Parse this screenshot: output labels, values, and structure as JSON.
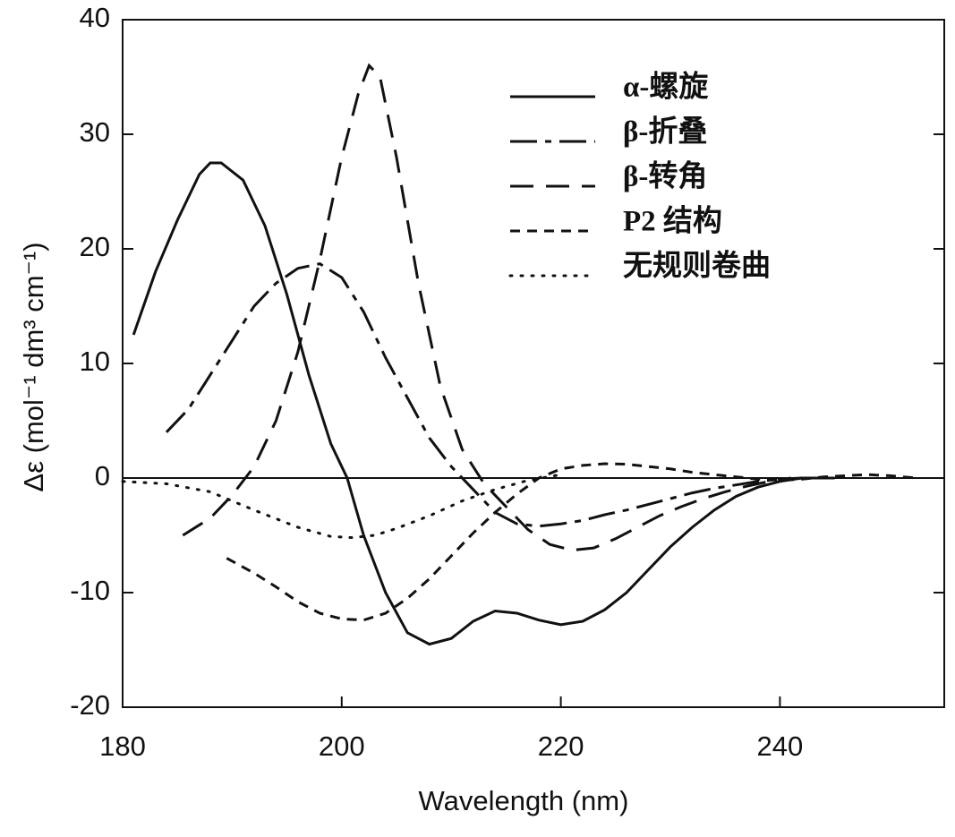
{
  "chart_data": {
    "type": "line",
    "x_label": "Wavelength (nm)",
    "y_label": "Δε (mol⁻¹ dm³ cm⁻¹)",
    "xlim": [
      180,
      255
    ],
    "ylim": [
      -20,
      40
    ],
    "xticks": [
      180,
      200,
      220,
      240
    ],
    "yticks": [
      -20,
      -10,
      0,
      10,
      20,
      30,
      40
    ],
    "hline": 0,
    "legend": "upper-right",
    "series": [
      {
        "name": "α-螺旋",
        "color": "#111111",
        "style": "solid",
        "x": [
          181,
          183,
          185,
          187,
          188,
          189,
          191,
          193,
          195,
          197,
          199,
          200.5,
          202,
          204,
          206,
          208,
          210,
          212,
          214,
          216,
          218,
          220,
          222,
          224,
          226,
          228,
          230,
          232,
          234,
          236,
          238,
          240,
          242,
          245
        ],
        "values": [
          12.5,
          18,
          22.5,
          26.5,
          27.5,
          27.5,
          26,
          22,
          16,
          9,
          3,
          0,
          -5,
          -10,
          -13.5,
          -14.5,
          -14,
          -12.5,
          -11.6,
          -11.8,
          -12.4,
          -12.8,
          -12.5,
          -11.5,
          -10,
          -8,
          -6,
          -4.3,
          -2.8,
          -1.6,
          -0.8,
          -0.3,
          0,
          0
        ]
      },
      {
        "name": "β-折叠",
        "color": "#111111",
        "style": "dash-dot",
        "x": [
          184,
          186,
          188,
          190,
          192,
          194,
          196,
          198,
          200,
          202,
          204,
          206,
          208,
          210,
          212,
          214,
          216,
          218,
          220,
          222,
          224,
          226,
          228,
          230,
          232,
          234,
          236,
          238,
          240,
          242
        ],
        "values": [
          4,
          6,
          9,
          12,
          15,
          17,
          18.3,
          18.7,
          17.5,
          14.5,
          10.5,
          7,
          3.5,
          1,
          -1,
          -3,
          -4,
          -4.2,
          -4,
          -3.7,
          -3.2,
          -2.8,
          -2.3,
          -1.8,
          -1.3,
          -0.9,
          -0.6,
          -0.3,
          -0.1,
          0
        ]
      },
      {
        "name": "β-转角",
        "color": "#111111",
        "style": "long-dash",
        "x": [
          185.5,
          188,
          190,
          192,
          194,
          196,
          198,
          200,
          201.5,
          202.5,
          203.5,
          205,
          207,
          209,
          211,
          213,
          215,
          217,
          219,
          221,
          223,
          225,
          227,
          229,
          231,
          233,
          235,
          237,
          239,
          241
        ],
        "values": [
          -5,
          -3.5,
          -1.5,
          1,
          5,
          11,
          19,
          28,
          33.5,
          36,
          35,
          28,
          17,
          8,
          2.5,
          -0.5,
          -2.5,
          -4.5,
          -5.8,
          -6.3,
          -6.1,
          -5.3,
          -4.3,
          -3.3,
          -2.5,
          -1.8,
          -1.2,
          -0.7,
          -0.3,
          0
        ]
      },
      {
        "name": "P2 结构",
        "color": "#111111",
        "style": "dash",
        "x": [
          189.5,
          192,
          194,
          196,
          198,
          200,
          202,
          204,
          206,
          208,
          210,
          212,
          214,
          216,
          218,
          220,
          222,
          224,
          226,
          228,
          230,
          232,
          234,
          236,
          238,
          240,
          242,
          244,
          246,
          248,
          250,
          252.5
        ],
        "values": [
          -7,
          -8.3,
          -9.5,
          -10.8,
          -11.8,
          -12.3,
          -12.4,
          -11.8,
          -10.5,
          -8.8,
          -6.8,
          -4.8,
          -3,
          -1.4,
          0,
          0.8,
          1.1,
          1.25,
          1.2,
          1,
          0.8,
          0.5,
          0.3,
          0.1,
          -0.1,
          -0.2,
          -0.1,
          0.1,
          0.2,
          0.3,
          0.2,
          0
        ]
      },
      {
        "name": "无规则卷曲",
        "color": "#111111",
        "style": "dot",
        "x": [
          180,
          184,
          188,
          192,
          196,
          199,
          201,
          203,
          205,
          208,
          211,
          214,
          217,
          220
        ],
        "values": [
          -0.3,
          -0.5,
          -1.2,
          -2.8,
          -4.3,
          -5.1,
          -5.2,
          -5,
          -4.4,
          -3.3,
          -2,
          -1,
          -0.2,
          0.3
        ]
      }
    ]
  }
}
